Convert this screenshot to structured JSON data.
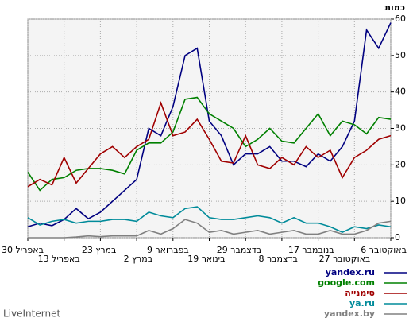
{
  "chart_data": {
    "type": "line",
    "y_label": "כמות",
    "brand": "LiveInternet",
    "categories": [
      "30 באפריל",
      null,
      null,
      "13 באפריל",
      null,
      null,
      "23 במרץ",
      null,
      null,
      "2 במרץ",
      null,
      null,
      "9 בפברואר",
      null,
      null,
      "19 בינואר",
      null,
      null,
      "29 בדצמבר",
      null,
      null,
      "8 בדצמבר",
      null,
      null,
      "17 בנובמבר",
      null,
      null,
      "27 באוקטובר",
      null,
      null,
      "6 באוקטובר"
    ],
    "ylim": [
      0,
      60
    ],
    "yticks": [
      0,
      10,
      20,
      30,
      40,
      50,
      60
    ],
    "grid": true,
    "legend": "bottom-right",
    "series": [
      {
        "name": "yandex.ru",
        "color": "#000080",
        "values": [
          3,
          4,
          3.3,
          5,
          8,
          5.2,
          7,
          10,
          13,
          16,
          30,
          28,
          36,
          50,
          52,
          32,
          28,
          20,
          23,
          23,
          25,
          21,
          21,
          19.5,
          23,
          21,
          25,
          32,
          57,
          52,
          59
        ]
      },
      {
        "name": "google.com",
        "color": "#008000",
        "values": [
          18,
          13,
          16,
          16.5,
          18.5,
          19,
          19,
          18.5,
          17.5,
          24,
          26,
          26,
          29,
          38,
          38.5,
          34,
          32,
          30,
          25,
          27,
          30,
          26.5,
          26,
          30,
          34,
          28,
          32,
          31,
          28.5,
          33,
          32.5
        ]
      },
      {
        "name": "סימנייה",
        "color": "#a00000",
        "values": [
          14,
          16,
          14.5,
          22,
          15,
          19,
          23,
          25,
          22,
          25,
          27,
          37,
          28,
          29,
          32.5,
          27,
          21,
          20.5,
          28,
          20,
          19,
          22,
          20,
          25,
          22,
          24,
          16.5,
          22,
          24,
          27,
          28
        ]
      },
      {
        "name": "ya.ru",
        "color": "#008b9a",
        "values": [
          5.5,
          3.5,
          4.5,
          5,
          4,
          4.5,
          4.5,
          5,
          5,
          4.5,
          7,
          6,
          5.5,
          8,
          8.5,
          5.5,
          5,
          5,
          5.5,
          6,
          5.5,
          4,
          5.5,
          4,
          4,
          3,
          1.5,
          3,
          2.5,
          3.5,
          3
        ]
      },
      {
        "name": "yandex.by",
        "color": "#808080",
        "values": [
          0,
          0,
          0,
          0,
          0.2,
          0.5,
          0.3,
          0.5,
          0.5,
          0.5,
          2,
          1,
          2.5,
          5,
          4,
          1.5,
          2,
          1,
          1.5,
          2,
          1,
          1.5,
          2,
          1,
          1,
          2,
          1,
          1,
          2,
          4,
          4.5
        ]
      }
    ]
  }
}
